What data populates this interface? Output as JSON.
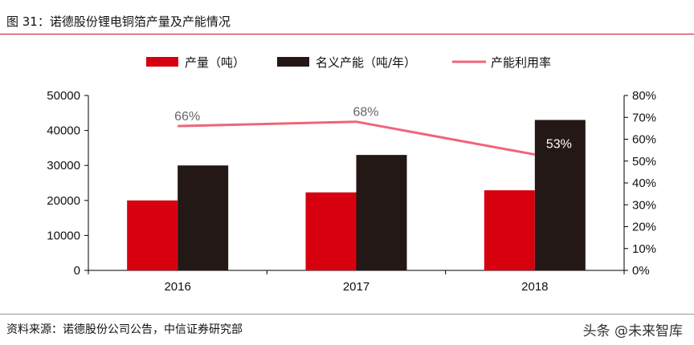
{
  "title": "图 31：诺德股份锂电铜箔产量及产能情况",
  "source": "资料来源：诺德股份公司公告，中信证券研究部",
  "watermark": "头条 @未来智库",
  "chart_data": {
    "type": "bar",
    "categories": [
      "2016",
      "2017",
      "2018"
    ],
    "series": [
      {
        "name": "产量（吨）",
        "type": "bar",
        "axis": "left",
        "color": "#d7000f",
        "values": [
          20000,
          22300,
          22900
        ]
      },
      {
        "name": "名义产能（吨/年）",
        "type": "bar",
        "axis": "left",
        "color": "#231815",
        "values": [
          30000,
          33000,
          43000
        ]
      },
      {
        "name": "产能利用率",
        "type": "line",
        "axis": "right",
        "color": "#f06478",
        "values": [
          66,
          68,
          53
        ],
        "labels": [
          "66%",
          "68%",
          "53%"
        ]
      }
    ],
    "ylim": [
      0,
      50000
    ],
    "yticks": [
      "0",
      "10000",
      "20000",
      "30000",
      "40000",
      "50000"
    ],
    "y2lim": [
      0,
      80
    ],
    "y2ticks": [
      "0%",
      "10%",
      "20%",
      "30%",
      "40%",
      "50%",
      "60%",
      "70%",
      "80%"
    ],
    "legend": "top",
    "grid": false
  }
}
